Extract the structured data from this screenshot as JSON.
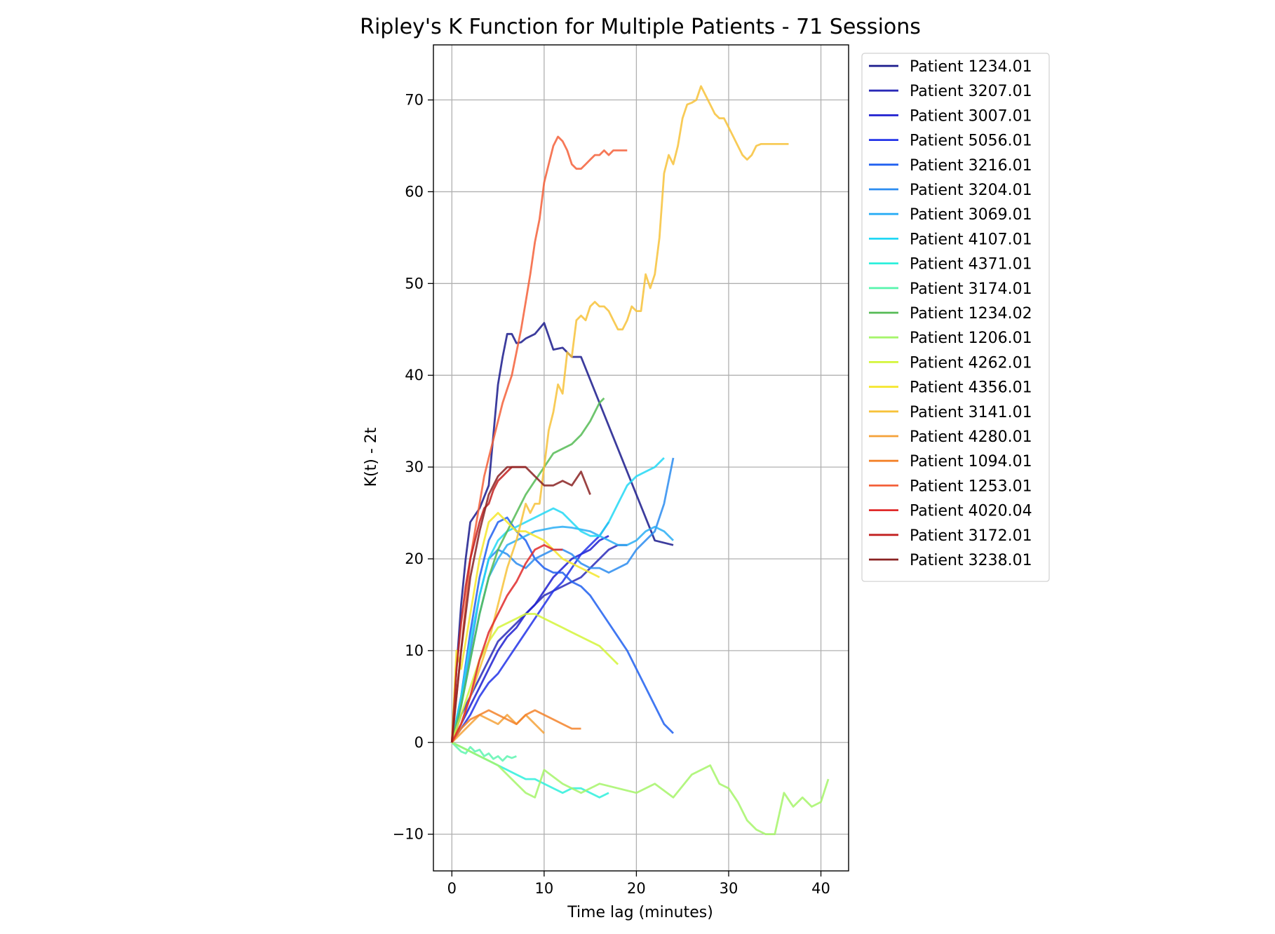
{
  "chart_data": {
    "type": "line",
    "title": "Ripley's K Function for Multiple Patients - 71 Sessions",
    "xlabel": "Time lag (minutes)",
    "ylabel": "K(t) - 2t",
    "xlim": [
      -2,
      43
    ],
    "ylim": [
      -14,
      76
    ],
    "xticks": [
      0,
      10,
      20,
      30,
      40
    ],
    "yticks": [
      -10,
      0,
      10,
      20,
      30,
      40,
      50,
      60,
      70
    ],
    "grid": true,
    "legend_position": "outside-right",
    "series": [
      {
        "name": "Patient 1234.01",
        "color": "#1a1a8c",
        "x": [
          0,
          0.5,
          1,
          1.5,
          2,
          3,
          4,
          5,
          5.5,
          6,
          6.5,
          7,
          7.5,
          8,
          9,
          10,
          11,
          12,
          13,
          14,
          16,
          18,
          20,
          22,
          24
        ],
        "y": [
          0,
          8,
          15,
          20,
          24,
          25.5,
          28,
          39,
          42,
          44.5,
          44.5,
          43.5,
          43.6,
          44,
          44.5,
          45.7,
          42.8,
          43,
          42,
          42,
          37,
          32,
          27,
          22,
          21.5
        ]
      },
      {
        "name": "Patient 3207.01",
        "color": "#2a2ab8",
        "x": [
          0,
          1,
          2,
          3,
          4,
          5,
          6,
          7,
          8,
          9,
          10,
          11,
          12,
          13,
          14,
          15,
          16,
          17,
          18,
          19
        ],
        "y": [
          0,
          3,
          5,
          7,
          9,
          11,
          12,
          13,
          14,
          15,
          16,
          16.5,
          17,
          17.5,
          18,
          19,
          20,
          21,
          21.5,
          21.5
        ]
      },
      {
        "name": "Patient 3007.01",
        "color": "#1f1fd0",
        "x": [
          0,
          1,
          2,
          3,
          4,
          5,
          6,
          7,
          8,
          9,
          10,
          11,
          12,
          13,
          14,
          15,
          16,
          17
        ],
        "y": [
          0,
          2,
          4,
          6,
          8,
          10,
          11.5,
          12.5,
          14,
          15,
          16.5,
          18,
          19,
          20,
          20.5,
          21,
          22,
          22.5
        ]
      },
      {
        "name": "Patient 5056.01",
        "color": "#2233e8",
        "x": [
          0,
          1,
          2,
          3,
          4,
          5,
          6,
          7,
          8,
          9,
          10,
          11,
          12,
          13,
          14,
          15,
          16,
          17
        ],
        "y": [
          0,
          1.5,
          3,
          5,
          6.5,
          7.5,
          9,
          10.5,
          12,
          13.5,
          15,
          16.5,
          17.5,
          19,
          20.5,
          21.5,
          22.5,
          24
        ]
      },
      {
        "name": "Patient 3216.01",
        "color": "#2060f0",
        "x": [
          0,
          1,
          2,
          3,
          4,
          5,
          6,
          7,
          8,
          9,
          10,
          11,
          12,
          13,
          14,
          15,
          16,
          17,
          18,
          19,
          20,
          21,
          22,
          23,
          24
        ],
        "y": [
          0,
          5,
          12,
          18,
          22,
          24,
          24.5,
          23,
          22,
          20,
          19,
          18.5,
          18.5,
          17.5,
          17,
          16,
          14.5,
          13,
          11.5,
          10,
          8,
          6,
          4,
          2,
          1
        ]
      },
      {
        "name": "Patient 3204.01",
        "color": "#2b8cf0",
        "x": [
          0,
          1,
          2,
          3,
          4,
          5,
          6,
          7,
          8,
          9,
          10,
          11,
          12,
          13,
          14,
          15,
          16,
          17,
          18,
          19,
          20,
          21,
          22,
          23,
          24
        ],
        "y": [
          0,
          4,
          10,
          16,
          20,
          21,
          20.5,
          19.5,
          19,
          20,
          20.5,
          21,
          21,
          20.5,
          19.5,
          19,
          19,
          18.5,
          19,
          19.5,
          21,
          22,
          23,
          26,
          31
        ]
      },
      {
        "name": "Patient 3069.01",
        "color": "#2aaef5",
        "x": [
          0,
          1,
          2,
          3,
          4,
          5,
          6,
          7,
          8,
          9,
          10,
          11,
          12,
          13,
          14,
          15,
          16,
          17,
          18,
          19,
          20,
          21,
          22,
          23,
          24
        ],
        "y": [
          0,
          4,
          9,
          14,
          18,
          20,
          21.5,
          22,
          22.5,
          23,
          23.2,
          23.4,
          23.5,
          23.4,
          23.2,
          23,
          22.5,
          22,
          21.5,
          21.5,
          22,
          23,
          23.5,
          23,
          22
        ]
      },
      {
        "name": "Patient 4107.01",
        "color": "#22d8f5",
        "x": [
          0,
          1,
          2,
          3,
          4,
          5,
          6,
          7,
          8,
          9,
          10,
          11,
          12,
          13,
          14,
          15,
          16,
          17,
          18,
          19,
          20,
          21,
          22,
          23
        ],
        "y": [
          0,
          5,
          11,
          16,
          20,
          22,
          23,
          23.5,
          24,
          24.5,
          25,
          25.5,
          25,
          24,
          23,
          22.5,
          22.5,
          24,
          26,
          28,
          29,
          29.5,
          30,
          31
        ]
      },
      {
        "name": "Patient 4371.01",
        "color": "#2ef0dc",
        "x": [
          0,
          1,
          2,
          3,
          4,
          5,
          6,
          7,
          8,
          9,
          10,
          11,
          12,
          13,
          14,
          15,
          16,
          17
        ],
        "y": [
          0,
          -0.5,
          -1,
          -1.5,
          -2,
          -2.5,
          -3,
          -3.5,
          -4,
          -4,
          -4.5,
          -5,
          -5.5,
          -5,
          -5,
          -5.5,
          -6,
          -5.5
        ]
      },
      {
        "name": "Patient 3174.01",
        "color": "#5ef5b0",
        "x": [
          0,
          0.5,
          1,
          1.5,
          2,
          2.5,
          3,
          3.5,
          4,
          4.5,
          5,
          5.5,
          6,
          6.5,
          7
        ],
        "y": [
          0,
          -0.5,
          -1,
          -1.2,
          -0.5,
          -1,
          -0.8,
          -1.5,
          -1.2,
          -1.8,
          -1.5,
          -2,
          -1.5,
          -1.7,
          -1.5
        ]
      },
      {
        "name": "Patient 1234.02",
        "color": "#55bb55",
        "x": [
          0,
          1,
          2,
          3,
          4,
          5,
          6,
          7,
          8,
          9,
          10,
          11,
          12,
          13,
          14,
          15,
          16,
          16.5
        ],
        "y": [
          0,
          4,
          9,
          14,
          18,
          21,
          23,
          25,
          27,
          28.5,
          30,
          31.5,
          32,
          32.5,
          33.5,
          35,
          37,
          37.5
        ]
      },
      {
        "name": "Patient 1206.01",
        "color": "#a6f56a",
        "x": [
          0,
          1,
          2,
          3,
          4,
          5,
          6,
          7,
          8,
          9,
          10,
          12,
          14,
          16,
          18,
          20,
          22,
          24,
          26,
          28,
          29,
          30,
          31,
          32,
          33,
          34,
          35,
          36,
          37,
          38,
          39,
          40,
          40.8
        ],
        "y": [
          0,
          -0.5,
          -1,
          -1.5,
          -2,
          -2.5,
          -3.5,
          -4.5,
          -5.5,
          -6,
          -3,
          -4.5,
          -5.5,
          -4.5,
          -5,
          -5.5,
          -4.5,
          -6,
          -3.5,
          -2.5,
          -4.5,
          -5,
          -6.5,
          -8.5,
          -9.5,
          -10,
          -10,
          -5.5,
          -7,
          -6,
          -7,
          -6.5,
          -4
        ]
      },
      {
        "name": "Patient 4262.01",
        "color": "#d4f53a",
        "x": [
          0,
          1,
          2,
          3,
          4,
          5,
          6,
          7,
          8,
          9,
          10,
          11,
          12,
          13,
          14,
          15,
          16,
          17,
          18
        ],
        "y": [
          0,
          3,
          6,
          9,
          11,
          12.5,
          13,
          13.5,
          14,
          14,
          13.5,
          13,
          12.5,
          12,
          11.5,
          11,
          10.5,
          9.5,
          8.5
        ]
      },
      {
        "name": "Patient 4356.01",
        "color": "#f5e62a",
        "x": [
          0,
          0.5,
          1,
          2,
          3,
          4,
          5,
          6,
          7,
          8,
          9,
          10,
          11,
          12,
          13,
          14,
          15,
          16
        ],
        "y": [
          0,
          10,
          8,
          14,
          20,
          24,
          25,
          24,
          23,
          23,
          22.5,
          22,
          21,
          20,
          19.5,
          19,
          18.5,
          18
        ]
      },
      {
        "name": "Patient 3141.01",
        "color": "#f7c23a",
        "x": [
          0,
          1,
          2,
          3,
          4,
          5,
          6,
          7,
          7.5,
          8,
          8.5,
          9,
          9.5,
          10,
          10.5,
          11,
          11.5,
          12,
          12.5,
          13,
          13.5,
          14,
          14.5,
          15,
          15.5,
          16,
          16.5,
          17,
          17.5,
          18,
          18.5,
          19,
          19.5,
          20,
          20.5,
          21,
          21.5,
          22,
          22.5,
          23,
          23.5,
          24,
          24.5,
          25,
          25.5,
          26,
          26.5,
          27,
          27.5,
          28,
          28.5,
          29,
          29.5,
          30,
          30.5,
          31,
          31.5,
          32,
          32.5,
          33,
          33.5,
          34,
          34.5,
          35,
          35.5,
          36,
          36.5
        ],
        "y": [
          0,
          2,
          5,
          8,
          11,
          15,
          19,
          22,
          24,
          26,
          25,
          26,
          26,
          30,
          34,
          36,
          39,
          38,
          42.5,
          42,
          46,
          46.5,
          46,
          47.5,
          48,
          47.5,
          47.5,
          47,
          46,
          45,
          45,
          46,
          47.5,
          47,
          47,
          51,
          49.5,
          51,
          55,
          62,
          64,
          63,
          65,
          68,
          69.5,
          69.7,
          70,
          71.5,
          70.5,
          69.5,
          68.5,
          68,
          68,
          67,
          66,
          65,
          64,
          63.5,
          64,
          65,
          65.2,
          65.2,
          65.2,
          65.2,
          65.2,
          65.2,
          65.2
        ]
      },
      {
        "name": "Patient 4280.01",
        "color": "#f5a23a",
        "x": [
          0,
          1,
          2,
          3,
          4,
          5,
          6,
          7,
          8,
          9,
          10
        ],
        "y": [
          0,
          1,
          2,
          3,
          2.5,
          2,
          3,
          2,
          3,
          2,
          1
        ]
      },
      {
        "name": "Patient 1094.01",
        "color": "#f3822a",
        "x": [
          0,
          1,
          2,
          3,
          4,
          5,
          6,
          7,
          8,
          9,
          10,
          11,
          12,
          13,
          14
        ],
        "y": [
          0,
          1.5,
          2.5,
          3,
          3.5,
          3,
          2.5,
          2,
          3,
          3.5,
          3,
          2.5,
          2,
          1.5,
          1.5
        ]
      },
      {
        "name": "Patient 1253.01",
        "color": "#f4603a",
        "x": [
          0,
          0.5,
          1,
          1.5,
          2,
          2.5,
          3,
          3.5,
          4,
          4.5,
          5,
          5.5,
          6,
          6.5,
          7,
          7.5,
          8,
          8.5,
          9,
          9.5,
          10,
          10.5,
          11,
          11.5,
          12,
          12.5,
          13,
          13.5,
          14,
          14.5,
          15,
          15.5,
          16,
          16.5,
          17,
          17.5,
          18,
          18.5,
          19
        ],
        "y": [
          0,
          5,
          10,
          15,
          20,
          23,
          26,
          29,
          31,
          33,
          35,
          37,
          38.5,
          40,
          42.5,
          45,
          48,
          51,
          54.5,
          57,
          61,
          63,
          65,
          66,
          65.5,
          64.5,
          63,
          62.5,
          62.5,
          63,
          63.5,
          64,
          64,
          64.5,
          64,
          64.5,
          64.5,
          64.5,
          64.5
        ]
      },
      {
        "name": "Patient 4020.04",
        "color": "#e02a2a",
        "x": [
          0,
          1,
          2,
          3,
          4,
          5,
          6,
          7,
          8,
          9,
          10,
          11,
          12
        ],
        "y": [
          0,
          2,
          5,
          9,
          12,
          14,
          16,
          17.5,
          19.5,
          21,
          21.5,
          21,
          21
        ]
      },
      {
        "name": "Patient 3172.01",
        "color": "#c22020",
        "x": [
          0,
          0.5,
          1,
          1.5,
          2,
          2.5,
          3,
          3.5,
          4,
          4.5,
          5,
          5.5,
          6,
          6.5,
          7,
          7.5,
          8
        ],
        "y": [
          0,
          8,
          13,
          17,
          20,
          22,
          24,
          25.5,
          26,
          27.5,
          28.5,
          29,
          29.5,
          30,
          30,
          30,
          30
        ]
      },
      {
        "name": "Patient 3238.01",
        "color": "#8a2222",
        "x": [
          0,
          1,
          2,
          3,
          4,
          5,
          6,
          7,
          8,
          9,
          10,
          11,
          12,
          13,
          14,
          15
        ],
        "y": [
          0,
          10,
          18,
          23,
          27,
          29,
          30,
          30,
          30,
          29,
          28,
          28,
          28.5,
          28,
          29.5,
          27
        ]
      }
    ]
  }
}
